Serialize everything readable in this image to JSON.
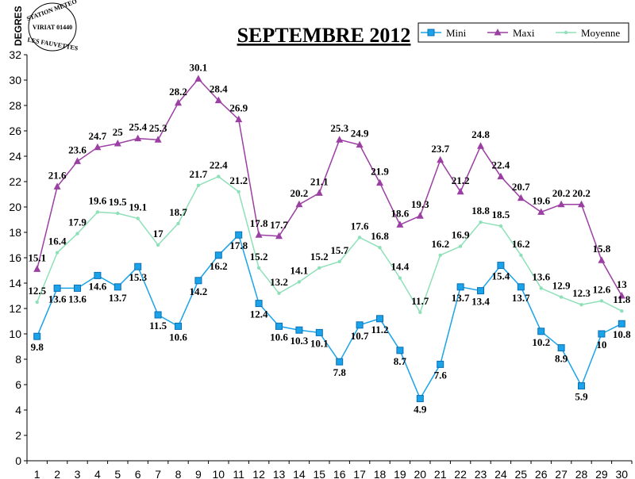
{
  "chart_data": {
    "type": "line",
    "title": "SEPTEMBRE 2012",
    "ylabel": "DEGRES",
    "xlabel": "",
    "ylim": [
      0,
      32
    ],
    "yticks": [
      0,
      2,
      4,
      6,
      8,
      10,
      12,
      14,
      16,
      18,
      20,
      22,
      24,
      26,
      28,
      30,
      32
    ],
    "categories": [
      "1",
      "2",
      "3",
      "4",
      "5",
      "6",
      "7",
      "8",
      "9",
      "10",
      "11",
      "12",
      "13",
      "14",
      "15",
      "16",
      "17",
      "18",
      "19",
      "20",
      "21",
      "22",
      "23",
      "24",
      "25",
      "26",
      "27",
      "28",
      "29",
      "30"
    ],
    "grid": false,
    "legend_position": "top-right",
    "series": [
      {
        "name": "Mini",
        "color": "#1aa3e8",
        "marker": "square",
        "values": [
          9.8,
          13.6,
          13.6,
          14.6,
          13.7,
          15.3,
          11.5,
          10.6,
          14.2,
          16.2,
          17.8,
          12.4,
          10.6,
          10.3,
          10.1,
          7.8,
          10.7,
          11.2,
          8.7,
          4.9,
          7.6,
          13.7,
          13.4,
          15.4,
          13.7,
          10.2,
          8.9,
          5.9,
          10,
          10.8
        ]
      },
      {
        "name": "Maxi",
        "color": "#9b3fa3",
        "marker": "triangle",
        "values": [
          15.1,
          21.6,
          23.6,
          24.7,
          25,
          25.4,
          25.3,
          28.2,
          30.1,
          28.4,
          26.9,
          17.8,
          17.7,
          20.2,
          21.1,
          25.3,
          24.9,
          21.9,
          18.6,
          19.3,
          23.7,
          21.2,
          24.8,
          22.4,
          20.7,
          19.6,
          20.2,
          20.2,
          15.8,
          13
        ]
      },
      {
        "name": "Moyenne",
        "color": "#8ee0b8",
        "marker": "dot",
        "values": [
          12.5,
          16.4,
          17.9,
          19.6,
          19.5,
          19.1,
          17,
          18.7,
          21.7,
          22.4,
          21.2,
          15.2,
          13.2,
          14.1,
          15.2,
          15.7,
          17.6,
          16.8,
          14.4,
          11.7,
          16.2,
          16.9,
          18.8,
          18.5,
          16.2,
          13.6,
          12.9,
          12.3,
          12.6,
          11.8
        ]
      }
    ]
  },
  "logo": {
    "line1": "STATION METEO",
    "line2": "VIRIAT 01440",
    "line3": "LES FAUVETTES"
  }
}
